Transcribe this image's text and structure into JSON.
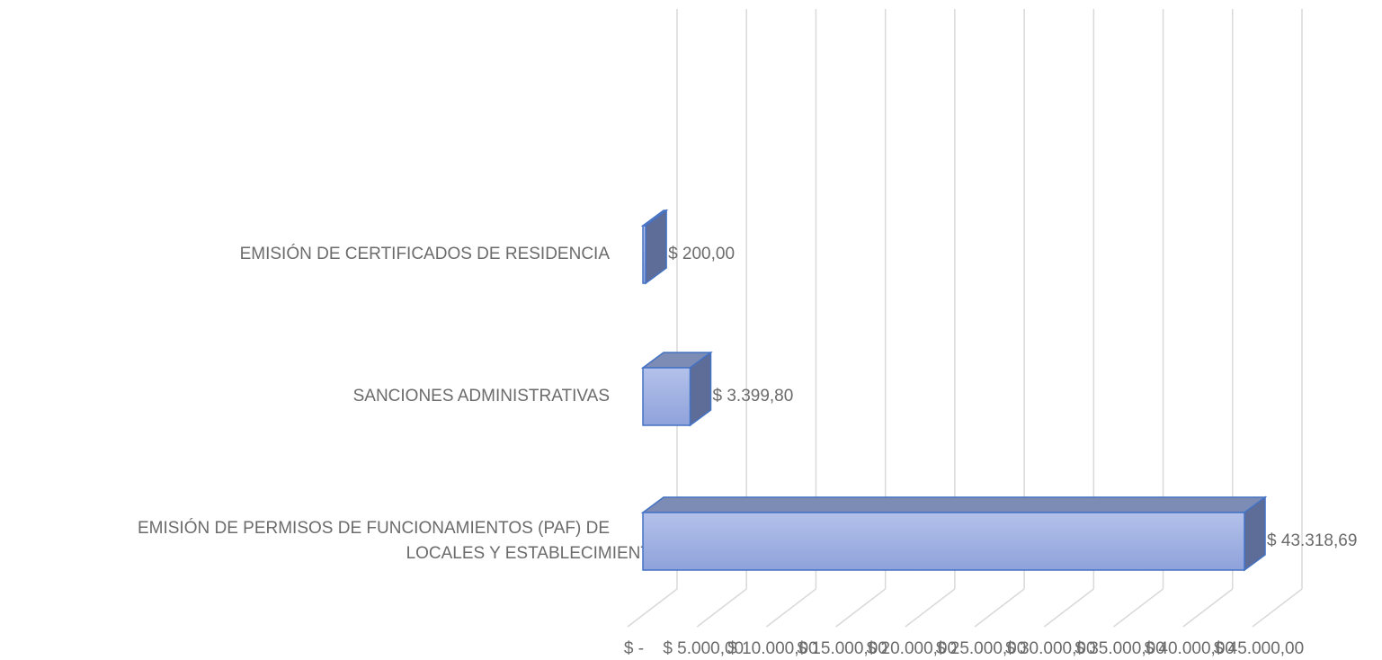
{
  "chart_data": {
    "type": "bar3d",
    "orientation": "horizontal",
    "categories": [
      "EMISIÓN DE CERTIFICADOS DE RESIDENCIA",
      "SANCIONES ADMINISTRATIVAS",
      "EMISIÓN DE PERMISOS DE FUNCIONAMIENTOS (PAF) DE LOCALES Y ESTABLECIMIENTO"
    ],
    "values": [
      200,
      3399.8,
      43318.69
    ],
    "value_labels": [
      "$ 200,00",
      "$ 3.399,80",
      "$ 43.318,69"
    ],
    "color": "#a3b4e4",
    "xlim": [
      0,
      45000
    ],
    "xticks": [
      {
        "value": 0,
        "label": "$ -"
      },
      {
        "value": 5000,
        "label": "$ 5.000,00"
      },
      {
        "value": 10000,
        "label": "$ 10.000,00"
      },
      {
        "value": 15000,
        "label": "$ 15.000,00"
      },
      {
        "value": 20000,
        "label": "$ 20.000,00"
      },
      {
        "value": 25000,
        "label": "$ 25.000,00"
      },
      {
        "value": 30000,
        "label": "$ 30.000,00"
      },
      {
        "value": 35000,
        "label": "$ 35.000,00"
      },
      {
        "value": 40000,
        "label": "$ 40.000,00"
      },
      {
        "value": 45000,
        "label": "$ 45.000,00"
      }
    ],
    "grid": true
  }
}
